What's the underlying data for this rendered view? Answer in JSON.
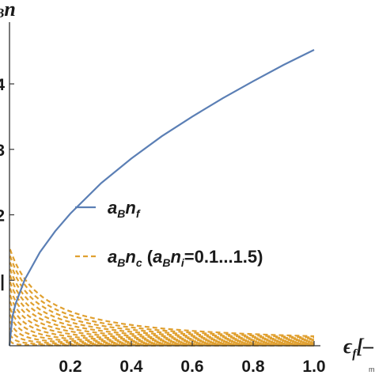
{
  "chart_data": {
    "type": "line",
    "title": "",
    "xlabel": {
      "main": "ϵ",
      "sub": "f",
      "tail": "[–",
      "unit_fragment": "m"
    },
    "ylabel": {
      "sub": "B",
      "main": "n"
    },
    "xlim": [
      0,
      1.0
    ],
    "ylim": [
      0,
      4.6
    ],
    "x_ticks": [
      "0.2",
      "0.4",
      "0.6",
      "0.8",
      "1.0"
    ],
    "y_ticks": [
      {
        "value": 4,
        "label": "4"
      },
      {
        "value": 3,
        "label": "3"
      },
      {
        "value": 2,
        "label": "2"
      },
      {
        "value": 1,
        "label": "|"
      }
    ],
    "series": [
      {
        "name": "a_B n_f",
        "style": "solid",
        "color": "#5b7fb5",
        "x": [
          0,
          0.01,
          0.02,
          0.05,
          0.1,
          0.15,
          0.2,
          0.3,
          0.4,
          0.5,
          0.6,
          0.7,
          0.8,
          0.9,
          1.0
        ],
        "y": [
          0,
          0.45,
          0.64,
          1.01,
          1.43,
          1.75,
          2.02,
          2.48,
          2.86,
          3.2,
          3.5,
          3.78,
          4.04,
          4.29,
          4.52
        ]
      },
      {
        "name": "a_B n_c (a_B n_i=0.1...1.5)",
        "style": "dashed",
        "color": "#e0a030",
        "family": "hyperbolic",
        "param_values": [
          0.1,
          0.2,
          0.3,
          0.4,
          0.5,
          0.6,
          0.7,
          0.8,
          0.9,
          1.0,
          1.1,
          1.2,
          1.3,
          1.4,
          1.5
        ],
        "x_range": [
          0.002,
          1.0
        ]
      }
    ],
    "legend": {
      "placement": "center-right",
      "entries": [
        {
          "series": 0,
          "parts": [
            "a",
            "B",
            "n",
            "f"
          ],
          "text": ""
        },
        {
          "series": 1,
          "parts": [
            "a",
            "B",
            "n",
            "c"
          ],
          "text": " (",
          "parts2": [
            "a",
            "B",
            "n",
            "i"
          ],
          "tail": "=0.1...1.5)"
        }
      ]
    },
    "grid": false
  }
}
